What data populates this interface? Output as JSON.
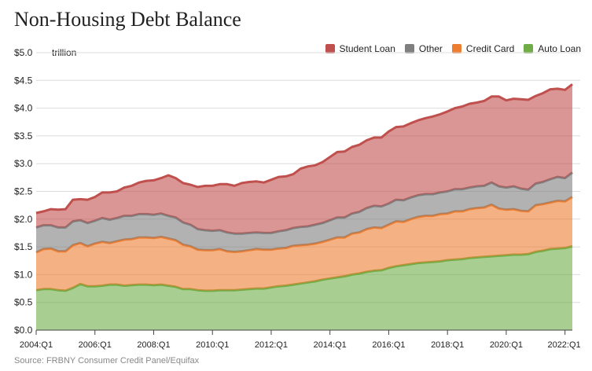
{
  "title": "Non-Housing Debt Balance",
  "unit_label": "trillion",
  "source": "Source: FRBNY Consumer Credit Panel/Equifax",
  "legend": [
    {
      "label": "Student Loan",
      "color": "#c0504d"
    },
    {
      "label": "Other",
      "color": "#7f7f7f"
    },
    {
      "label": "Credit Card",
      "color": "#ed7d31"
    },
    {
      "label": "Auto Loan",
      "color": "#70ad47"
    }
  ],
  "chart_data": {
    "type": "area",
    "stacked": true,
    "title": "Non-Housing Debt Balance",
    "ylabel": "trillion",
    "ylim": [
      0,
      5
    ],
    "yticks": [
      "$0.0",
      "$0.5",
      "$1.0",
      "$1.5",
      "$2.0",
      "$2.5",
      "$3.0",
      "$3.5",
      "$4.0",
      "$4.5",
      "$5.0"
    ],
    "xticks": [
      "2004:Q1",
      "2006:Q1",
      "2008:Q1",
      "2010:Q1",
      "2012:Q1",
      "2014:Q1",
      "2016:Q1",
      "2018:Q1",
      "2020:Q1",
      "2022:Q1"
    ],
    "x_range": [
      "2004:Q1",
      "2022:Q2"
    ],
    "legend_position": "top-right",
    "grid": "horizontal",
    "series": [
      {
        "name": "Auto Loan",
        "color": "#70ad47",
        "values": [
          0.72,
          0.74,
          0.74,
          0.72,
          0.71,
          0.76,
          0.83,
          0.79,
          0.79,
          0.8,
          0.82,
          0.82,
          0.8,
          0.81,
          0.82,
          0.82,
          0.81,
          0.82,
          0.8,
          0.78,
          0.74,
          0.74,
          0.72,
          0.71,
          0.71,
          0.72,
          0.72,
          0.72,
          0.73,
          0.74,
          0.75,
          0.75,
          0.77,
          0.79,
          0.8,
          0.82,
          0.84,
          0.86,
          0.88,
          0.91,
          0.93,
          0.95,
          0.97,
          1.0,
          1.02,
          1.05,
          1.07,
          1.08,
          1.12,
          1.15,
          1.17,
          1.19,
          1.21,
          1.22,
          1.23,
          1.24,
          1.26,
          1.27,
          1.28,
          1.3,
          1.31,
          1.32,
          1.33,
          1.34,
          1.35,
          1.36,
          1.36,
          1.37,
          1.41,
          1.43,
          1.46,
          1.47,
          1.48,
          1.51
        ]
      },
      {
        "name": "Credit Card",
        "color": "#ed7d31",
        "values": [
          0.68,
          0.72,
          0.73,
          0.7,
          0.71,
          0.77,
          0.74,
          0.72,
          0.77,
          0.79,
          0.75,
          0.78,
          0.83,
          0.83,
          0.85,
          0.85,
          0.85,
          0.86,
          0.85,
          0.84,
          0.8,
          0.77,
          0.73,
          0.73,
          0.73,
          0.74,
          0.7,
          0.69,
          0.69,
          0.7,
          0.71,
          0.7,
          0.68,
          0.68,
          0.68,
          0.7,
          0.69,
          0.68,
          0.68,
          0.68,
          0.7,
          0.72,
          0.7,
          0.74,
          0.74,
          0.77,
          0.78,
          0.76,
          0.78,
          0.81,
          0.78,
          0.81,
          0.83,
          0.84,
          0.83,
          0.85,
          0.84,
          0.87,
          0.86,
          0.88,
          0.89,
          0.89,
          0.93,
          0.85,
          0.82,
          0.82,
          0.79,
          0.77,
          0.84,
          0.84,
          0.84,
          0.86,
          0.84,
          0.89
        ]
      },
      {
        "name": "Other",
        "color": "#7f7f7f",
        "values": [
          0.45,
          0.43,
          0.42,
          0.43,
          0.43,
          0.43,
          0.41,
          0.42,
          0.41,
          0.43,
          0.42,
          0.42,
          0.43,
          0.42,
          0.42,
          0.42,
          0.42,
          0.42,
          0.41,
          0.41,
          0.4,
          0.39,
          0.37,
          0.36,
          0.35,
          0.34,
          0.34,
          0.33,
          0.32,
          0.31,
          0.3,
          0.3,
          0.3,
          0.31,
          0.32,
          0.32,
          0.33,
          0.33,
          0.34,
          0.34,
          0.35,
          0.36,
          0.36,
          0.36,
          0.37,
          0.38,
          0.39,
          0.39,
          0.38,
          0.39,
          0.39,
          0.39,
          0.39,
          0.39,
          0.39,
          0.39,
          0.4,
          0.4,
          0.4,
          0.39,
          0.39,
          0.39,
          0.4,
          0.4,
          0.4,
          0.41,
          0.4,
          0.39,
          0.39,
          0.4,
          0.42,
          0.43,
          0.42,
          0.44
        ]
      },
      {
        "name": "Student Loan",
        "color": "#c0504d",
        "values": [
          0.26,
          0.25,
          0.29,
          0.32,
          0.33,
          0.39,
          0.38,
          0.42,
          0.43,
          0.46,
          0.49,
          0.48,
          0.51,
          0.54,
          0.57,
          0.6,
          0.62,
          0.64,
          0.73,
          0.71,
          0.71,
          0.72,
          0.76,
          0.8,
          0.81,
          0.83,
          0.87,
          0.86,
          0.91,
          0.92,
          0.92,
          0.91,
          0.96,
          0.98,
          0.97,
          0.97,
          1.05,
          1.08,
          1.07,
          1.1,
          1.14,
          1.18,
          1.19,
          1.2,
          1.21,
          1.22,
          1.23,
          1.24,
          1.3,
          1.31,
          1.33,
          1.34,
          1.35,
          1.37,
          1.4,
          1.41,
          1.44,
          1.46,
          1.49,
          1.51,
          1.51,
          1.53,
          1.55,
          1.62,
          1.57,
          1.58,
          1.61,
          1.62,
          1.58,
          1.6,
          1.62,
          1.59,
          1.59,
          1.59
        ]
      }
    ]
  }
}
